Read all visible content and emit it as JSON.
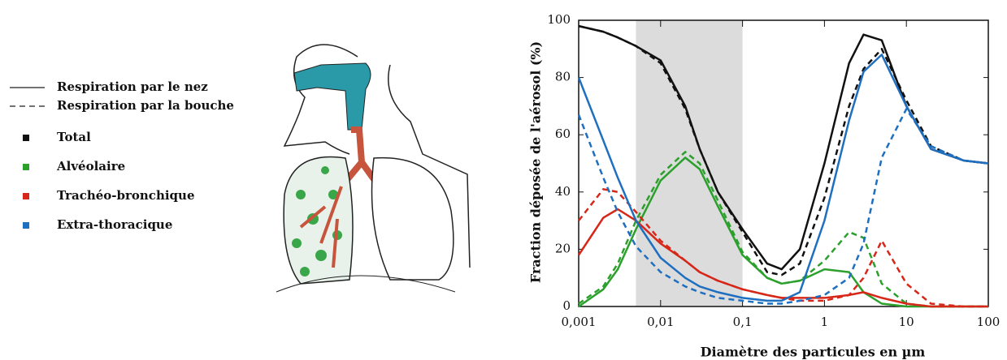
{
  "chart_data": {
    "type": "line",
    "x_label": "Diamètre des particules en µm",
    "y_label": "Fraction déposée de l'aérosol (%)",
    "log_x": true,
    "xlim": [
      0.001,
      100
    ],
    "xticks": [
      {
        "value": 0.001,
        "label": "0,001"
      },
      {
        "value": 0.01,
        "label": "0,01"
      },
      {
        "value": 0.1,
        "label": "0,1"
      },
      1,
      10,
      100
    ],
    "ylim": [
      0,
      100
    ],
    "yticks": [
      0,
      20,
      40,
      60,
      80,
      100
    ],
    "shaded_range": [
      0.005,
      0.1
    ],
    "legend": {
      "line_styles": [
        {
          "label": "Respiration par le nez",
          "dashed": false
        },
        {
          "label": "Respiration par la bouche",
          "dashed": true
        }
      ],
      "colors": [
        {
          "label": "Total",
          "color": "#111111"
        },
        {
          "label": "Alvéolaire",
          "color": "#2ca02c"
        },
        {
          "label": "Trachéo-bronchique",
          "color": "#d62718"
        },
        {
          "label": "Extra-thoracique",
          "color": "#1f6fc0"
        }
      ]
    },
    "x": [
      0.001,
      0.002,
      0.003,
      0.005,
      0.01,
      0.02,
      0.03,
      0.05,
      0.1,
      0.2,
      0.3,
      0.5,
      1,
      2,
      3,
      5,
      10,
      20,
      50,
      100
    ],
    "series": [
      {
        "color": "#111111",
        "dashed": false,
        "values": [
          98,
          96,
          94,
          91,
          86,
          70,
          55,
          40,
          27,
          15,
          13,
          20,
          50,
          85,
          95,
          93,
          70,
          55,
          51,
          50
        ]
      },
      {
        "color": "#111111",
        "dashed": true,
        "values": [
          98,
          96,
          94,
          91,
          85,
          69,
          55,
          40,
          26,
          12,
          11,
          15,
          38,
          70,
          83,
          90,
          72,
          56,
          51,
          50
        ]
      },
      {
        "color": "#2ca02c",
        "dashed": false,
        "values": [
          0,
          6,
          13,
          27,
          44,
          52,
          48,
          35,
          18,
          10,
          8,
          9,
          13,
          12,
          5,
          1,
          0,
          0,
          0,
          0
        ]
      },
      {
        "color": "#2ca02c",
        "dashed": true,
        "values": [
          1,
          7,
          15,
          30,
          46,
          54,
          50,
          37,
          19,
          10,
          8,
          9,
          16,
          26,
          24,
          8,
          1,
          0,
          0,
          0
        ]
      },
      {
        "color": "#d62718",
        "dashed": false,
        "values": [
          18,
          31,
          34,
          30,
          22,
          16,
          12,
          9,
          6,
          4,
          3,
          3,
          3,
          4,
          5,
          3,
          1,
          0,
          0,
          0
        ]
      },
      {
        "color": "#d62718",
        "dashed": true,
        "values": [
          30,
          41,
          40,
          33,
          23,
          16,
          12,
          9,
          6,
          4,
          3,
          2,
          2,
          4,
          10,
          23,
          8,
          1,
          0,
          0
        ]
      },
      {
        "color": "#1f6fc0",
        "dashed": false,
        "values": [
          80,
          58,
          45,
          30,
          17,
          10,
          7,
          5,
          3,
          2,
          2,
          5,
          30,
          65,
          82,
          88,
          70,
          55,
          51,
          50
        ]
      },
      {
        "color": "#1f6fc0",
        "dashed": true,
        "values": [
          67,
          45,
          33,
          21,
          12,
          7,
          5,
          3,
          2,
          1,
          1,
          2,
          4,
          10,
          22,
          52,
          69,
          56,
          51,
          50
        ]
      }
    ]
  }
}
